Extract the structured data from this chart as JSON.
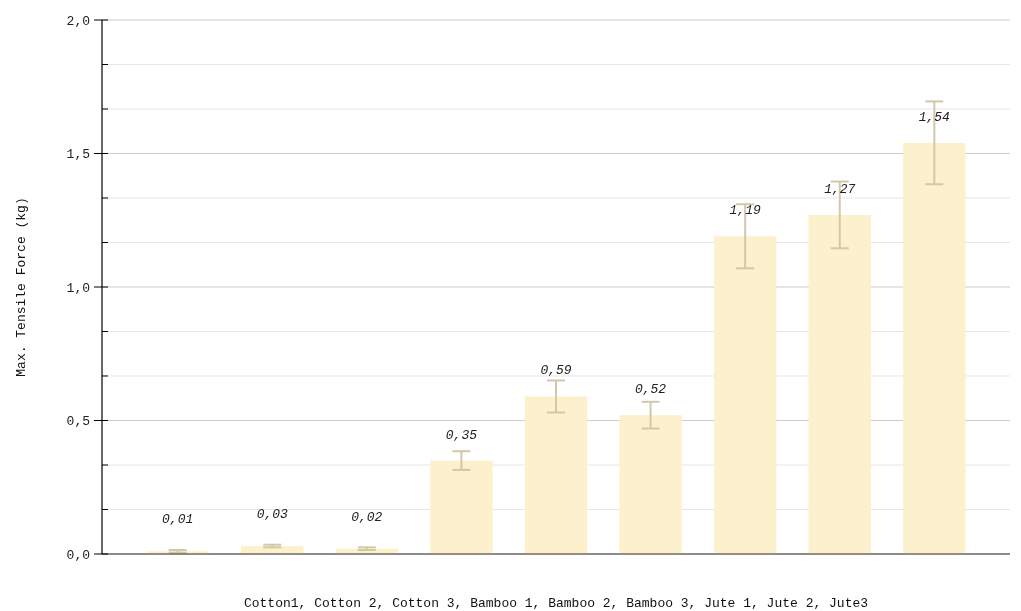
{
  "chart_data": {
    "type": "bar",
    "xlabel": "Cotton1, Cotton 2, Cotton 3, Bamboo 1, Bamboo 2, Bamboo 3, Jute 1, Jute 2, Jute3",
    "ylabel": "Max. Tensile Force (kg)",
    "categories": [
      null,
      null,
      null,
      null,
      null,
      null,
      null,
      null,
      null
    ],
    "values": [
      0.01,
      0.03,
      0.02,
      0.35,
      0.59,
      0.52,
      1.19,
      1.27,
      1.54
    ],
    "errors": [
      0.005,
      0.005,
      0.005,
      0.035,
      0.06,
      0.05,
      0.12,
      0.125,
      0.155
    ],
    "value_labels": [
      "0,01",
      "0,03",
      "0,02",
      "0,35",
      "0,59",
      "0,52",
      "1,19",
      "1,27",
      "1,54"
    ],
    "color": "#fdf0cc",
    "ylim": [
      0,
      2
    ],
    "yticks": [
      {
        "value": 0,
        "label": "0,0"
      },
      {
        "value": 0.1667,
        "label": null
      },
      {
        "value": 0.3333,
        "label": null
      },
      {
        "value": 0.5,
        "label": "0,5"
      },
      {
        "value": 0.6667,
        "label": null
      },
      {
        "value": 0.8333,
        "label": null
      },
      {
        "value": 1,
        "label": "1,0"
      },
      {
        "value": 1.1667,
        "label": null
      },
      {
        "value": 1.3333,
        "label": null
      },
      {
        "value": 1.5,
        "label": "1,5"
      },
      {
        "value": 1.6667,
        "label": null
      },
      {
        "value": 1.8333,
        "label": null
      },
      {
        "value": 2,
        "label": "2,0"
      }
    ],
    "grid": true
  }
}
